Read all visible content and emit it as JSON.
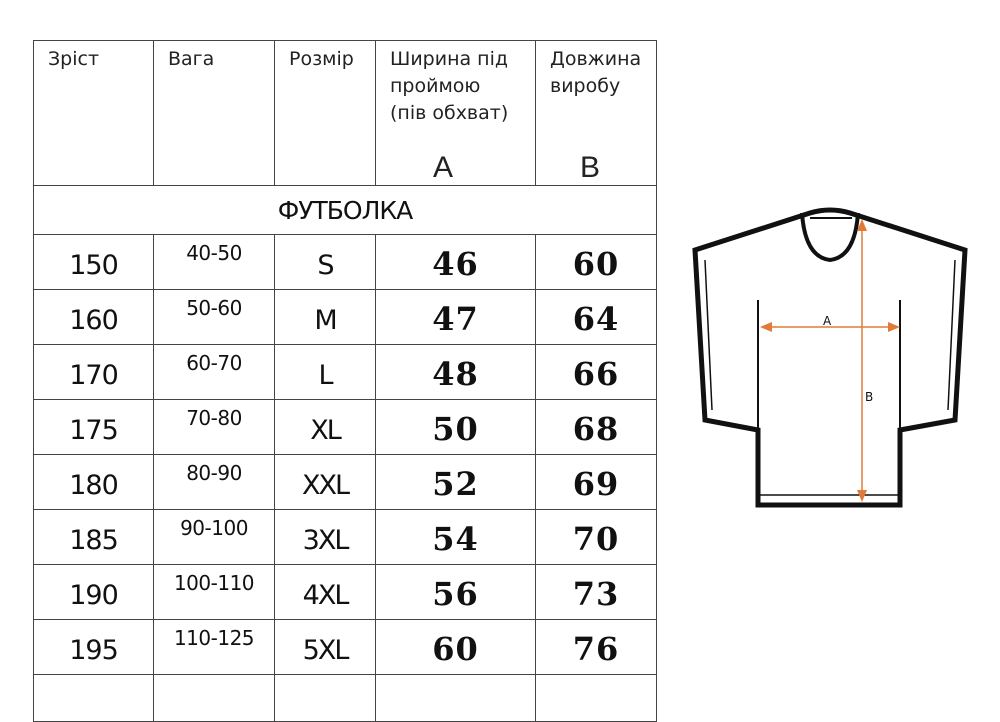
{
  "table": {
    "headers": [
      {
        "label": "Зріст"
      },
      {
        "label": "Вага"
      },
      {
        "label": "Розмір"
      },
      {
        "label": "Ширина під проймою (пів обхват)",
        "letter": "A"
      },
      {
        "label": "Довжина виробу",
        "letter": "B"
      }
    ],
    "section_title": "ФУТБОЛКА",
    "rows": [
      {
        "height": "150",
        "weight": "40-50",
        "size": "S",
        "a": "46",
        "b": "60"
      },
      {
        "height": "160",
        "weight": "50-60",
        "size": "M",
        "a": "47",
        "b": "64"
      },
      {
        "height": "170",
        "weight": "60-70",
        "size": "L",
        "a": "48",
        "b": "66"
      },
      {
        "height": "175",
        "weight": "70-80",
        "size": "XL",
        "a": "50",
        "b": "68"
      },
      {
        "height": "180",
        "weight": "80-90",
        "size": "XXL",
        "a": "52",
        "b": "69"
      },
      {
        "height": "185",
        "weight": "90-100",
        "size": "3XL",
        "a": "54",
        "b": "70"
      },
      {
        "height": "190",
        "weight": "100-110",
        "size": "4XL",
        "a": "56",
        "b": "73"
      },
      {
        "height": "195",
        "weight": "110-125",
        "size": "5XL",
        "a": "60",
        "b": "76"
      }
    ]
  },
  "diagram": {
    "label_a": "A",
    "label_b": "B",
    "arrow_color": "#e07b39",
    "outline_color": "#111111"
  }
}
